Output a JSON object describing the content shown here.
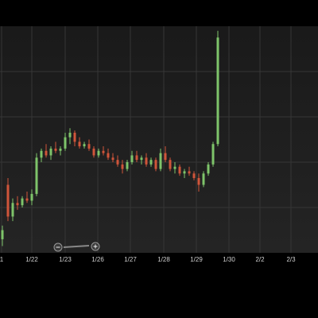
{
  "chart_data": {
    "type": "candlestick",
    "up_color": "#7ec46a",
    "down_color": "#d0553a",
    "grid": true,
    "xlim": [
      0,
      100
    ],
    "ylim": [
      0,
      100
    ],
    "ygrid": [
      20,
      40,
      60,
      80
    ],
    "xticks": [
      {
        "value": 0.5,
        "label": "1"
      },
      {
        "value": 10,
        "label": "1/22"
      },
      {
        "value": 20.5,
        "label": "1/23"
      },
      {
        "value": 30.75,
        "label": "1/26"
      },
      {
        "value": 41,
        "label": "1/27"
      },
      {
        "value": 51.5,
        "label": "1/28"
      },
      {
        "value": 61.75,
        "label": "1/29"
      },
      {
        "value": 72,
        "label": "1/30"
      },
      {
        "value": 81.75,
        "label": "2/2"
      },
      {
        "value": 91.5,
        "label": "2/3"
      }
    ],
    "x": [
      0.75,
      2.5,
      4,
      5.5,
      7,
      8.5,
      10,
      11.5,
      13,
      14.5,
      16,
      17.5,
      19,
      20.5,
      22,
      23.5,
      25,
      26.5,
      28,
      29.5,
      31,
      32.5,
      34,
      35.5,
      37,
      38.5,
      40,
      41.5,
      43,
      44.5,
      46,
      47.5,
      49,
      50.5,
      52,
      53.5,
      55,
      56.5,
      58,
      59.5,
      61,
      62.5,
      64,
      65.5,
      67,
      68.5
    ],
    "open": [
      6,
      30,
      16,
      22,
      21,
      24,
      23,
      26,
      42,
      45,
      43,
      46,
      45,
      46,
      51,
      53,
      49,
      47,
      48,
      46,
      43,
      45,
      44,
      42,
      41,
      39,
      37,
      40,
      43,
      41,
      42,
      39,
      41,
      37,
      44,
      41,
      37,
      38,
      35,
      36,
      35,
      33,
      30,
      35,
      39,
      48
    ],
    "high": [
      12,
      33,
      24,
      25,
      25,
      27,
      28,
      44,
      46,
      48,
      47,
      49,
      47,
      53,
      55,
      54,
      51,
      49,
      50,
      47,
      46,
      47,
      46,
      44,
      43,
      41,
      41,
      45,
      45,
      43,
      44,
      42,
      42,
      46,
      47,
      42,
      40,
      39,
      37,
      38,
      36,
      35,
      36,
      40,
      49,
      98
    ],
    "low": [
      3,
      14,
      14,
      19,
      20,
      22,
      21,
      25,
      40,
      42,
      41,
      44,
      43,
      45,
      48,
      47,
      46,
      46,
      45,
      42,
      42,
      43,
      41,
      40,
      38,
      35,
      36,
      39,
      40,
      39,
      38,
      38,
      36,
      36,
      40,
      36,
      35,
      34,
      33,
      34,
      32,
      27,
      29,
      34,
      38,
      47
    ],
    "close": [
      10,
      16,
      22,
      21,
      24,
      23,
      26,
      42,
      45,
      43,
      46,
      45,
      46,
      51,
      53,
      49,
      47,
      48,
      46,
      43,
      45,
      44,
      42,
      41,
      39,
      37,
      40,
      43,
      41,
      42,
      39,
      41,
      37,
      44,
      41,
      37,
      38,
      35,
      36,
      35,
      33,
      30,
      35,
      39,
      48,
      95
    ]
  }
}
